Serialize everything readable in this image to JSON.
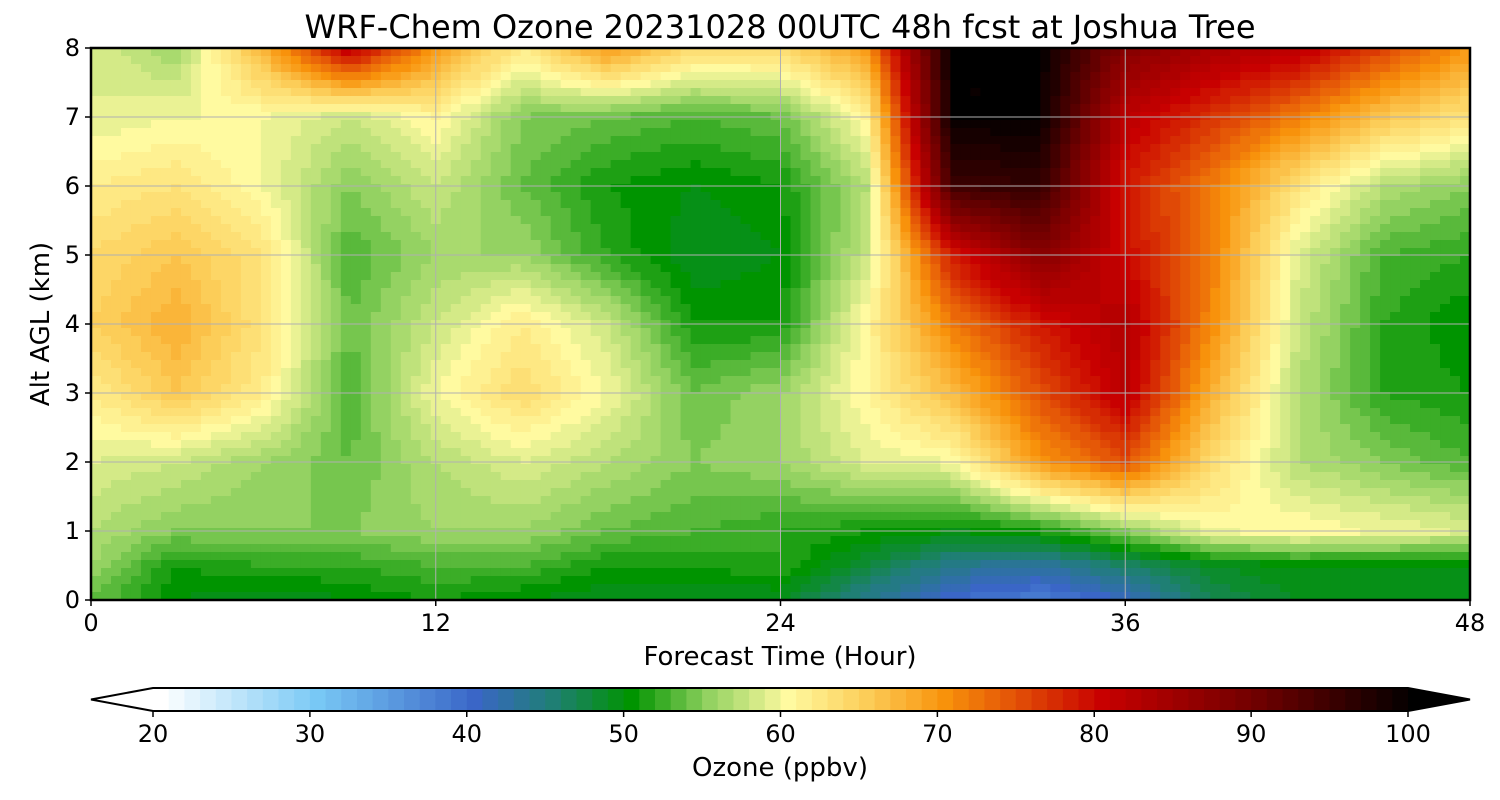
{
  "chart_data": {
    "type": "heatmap",
    "title": "WRF-Chem Ozone  20231028 00UTC 48h fcst at Joshua Tree",
    "xlabel": "Forecast Time (Hour)",
    "ylabel": "Alt AGL (km)",
    "xlim": [
      0,
      48
    ],
    "ylim": [
      0,
      8
    ],
    "x_ticks": [
      0,
      12,
      24,
      36,
      48
    ],
    "y_ticks": [
      0,
      1,
      2,
      3,
      4,
      5,
      6,
      7,
      8
    ],
    "grid": true,
    "x": [
      0,
      3,
      6,
      9,
      12,
      15,
      18,
      21,
      24,
      27,
      30,
      33,
      36,
      39,
      42,
      45,
      48
    ],
    "y": [
      0,
      0.5,
      1,
      2,
      3,
      4,
      5,
      6,
      7,
      8
    ],
    "z": [
      [
        54,
        50,
        49,
        50,
        51,
        50,
        49,
        49,
        49,
        44,
        40,
        38,
        41,
        47,
        49,
        49,
        49
      ],
      [
        56,
        51,
        52,
        52,
        53,
        53,
        51,
        51,
        52,
        48,
        44,
        43,
        46,
        49,
        50,
        50,
        50
      ],
      [
        57,
        55,
        55,
        55,
        56,
        56,
        54,
        53,
        52,
        51,
        50,
        51,
        55,
        60,
        61,
        60,
        59
      ],
      [
        59,
        58,
        56,
        54,
        57,
        59,
        57,
        55,
        56,
        59,
        60,
        70,
        75,
        64,
        57,
        55,
        53
      ],
      [
        62,
        66,
        62,
        53,
        60,
        64,
        60,
        54,
        56,
        61,
        67,
        75,
        82,
        68,
        57,
        52,
        51
      ],
      [
        65,
        68,
        63,
        54,
        58,
        62,
        58,
        51,
        51,
        61,
        72,
        79,
        83,
        71,
        58,
        52,
        50
      ],
      [
        64,
        66,
        63,
        53,
        56,
        56,
        52,
        49,
        50,
        58,
        79,
        88,
        80,
        72,
        59,
        53,
        52
      ],
      [
        62,
        63,
        60,
        55,
        58,
        54,
        51,
        50,
        51,
        57,
        95,
        96,
        79,
        72,
        63,
        57,
        55
      ],
      [
        59,
        60,
        60,
        58,
        61,
        55,
        54,
        53,
        54,
        61,
        100,
        100,
        82,
        77,
        72,
        66,
        63
      ],
      [
        59,
        56,
        68,
        82,
        70,
        62,
        70,
        64,
        64,
        70,
        100,
        100,
        88,
        84,
        82,
        76,
        70
      ]
    ],
    "colorbar": {
      "label": "Ozone  (ppbv)",
      "min": 20,
      "max": 100,
      "ticks": [
        20,
        30,
        40,
        50,
        60,
        70,
        80,
        90,
        100
      ],
      "extend": "both",
      "stops": [
        {
          "v": 20,
          "c": "#ffffff"
        },
        {
          "v": 30,
          "c": "#78c8f5"
        },
        {
          "v": 40,
          "c": "#3a66c7"
        },
        {
          "v": 45,
          "c": "#1f7f74"
        },
        {
          "v": 50,
          "c": "#009400"
        },
        {
          "v": 55,
          "c": "#94d262"
        },
        {
          "v": 60,
          "c": "#fffaa0"
        },
        {
          "v": 65,
          "c": "#fccd58"
        },
        {
          "v": 70,
          "c": "#f8920b"
        },
        {
          "v": 80,
          "c": "#c80000"
        },
        {
          "v": 90,
          "c": "#6e0000"
        },
        {
          "v": 100,
          "c": "#000000"
        }
      ]
    }
  }
}
